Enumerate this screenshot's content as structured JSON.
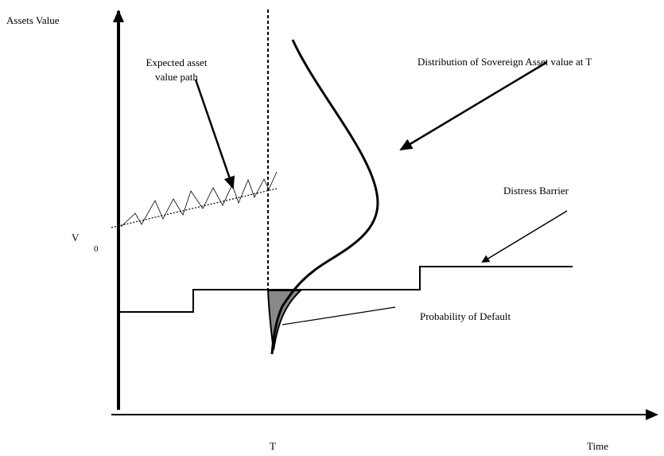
{
  "axes": {
    "y_label": "Assets Value",
    "x_label": "Time",
    "t_label": "T"
  },
  "annotations": {
    "expected_path": [
      "Expected asset",
      "value path"
    ],
    "distribution": "Distribution of Sovereign Asset value at T",
    "barrier": "Distress Barrier",
    "v0": {
      "main": "V",
      "sub": "0"
    },
    "default": "Probability of Default"
  }
}
